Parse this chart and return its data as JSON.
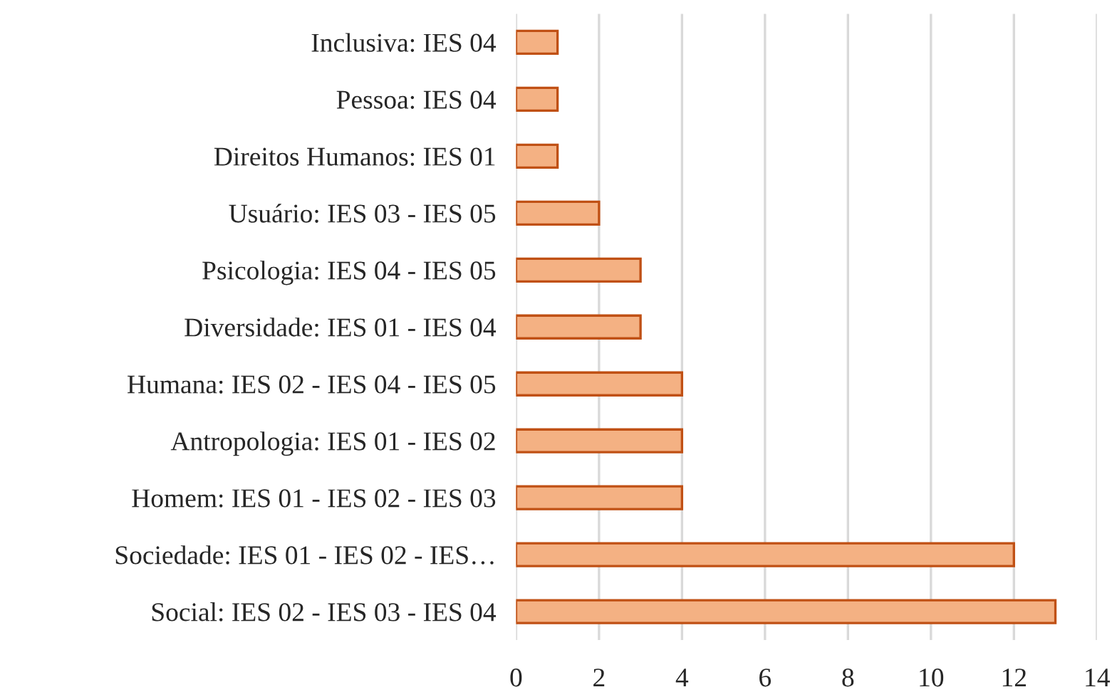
{
  "chart_data": {
    "type": "bar",
    "orientation": "horizontal",
    "categories": [
      "Inclusiva: IES 04",
      "Pessoa: IES 04",
      "Direitos Humanos: IES 01",
      "Usuário: IES 03 - IES 05",
      "Psicologia: IES 04 - IES 05",
      "Diversidade: IES 01 - IES 04",
      "Humana: IES 02 - IES 04 - IES 05",
      "Antropologia: IES 01 - IES 02",
      "Homem: IES 01 - IES 02 - IES 03",
      "Sociedade: IES 01 - IES 02 - IES…",
      "Social: IES 02 - IES 03 - IES 04"
    ],
    "values": [
      1,
      1,
      1,
      2,
      3,
      3,
      4,
      4,
      4,
      12,
      13
    ],
    "color": "#f4b183",
    "xlim": [
      0,
      14
    ],
    "xticks": [
      0,
      2,
      4,
      6,
      8,
      10,
      12,
      14
    ],
    "grid": "x",
    "legend": false
  }
}
